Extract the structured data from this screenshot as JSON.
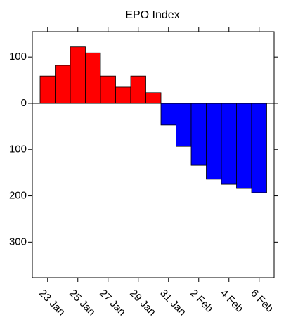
{
  "chart_data": {
    "type": "bar",
    "title": "EPO Index",
    "categories": [
      "23 Jan",
      null,
      "25 Jan",
      null,
      "27 Jan",
      null,
      "29 Jan",
      null,
      "31 Jan",
      null,
      "2 Feb",
      null,
      "4 Feb",
      null,
      "6 Feb"
    ],
    "values": [
      59,
      82,
      122,
      109,
      59,
      35,
      59,
      23,
      -47,
      -93,
      -134,
      -164,
      -175,
      -184,
      -193
    ],
    "colors": {
      "positive": "#ff0000",
      "negative": "#0000ff"
    },
    "ylim": [
      -377,
      155
    ],
    "yticks": [
      {
        "value": -300,
        "label": "300"
      },
      {
        "value": -200,
        "label": "200"
      },
      {
        "value": -100,
        "label": "100"
      },
      0,
      100
    ],
    "grid": false
  }
}
